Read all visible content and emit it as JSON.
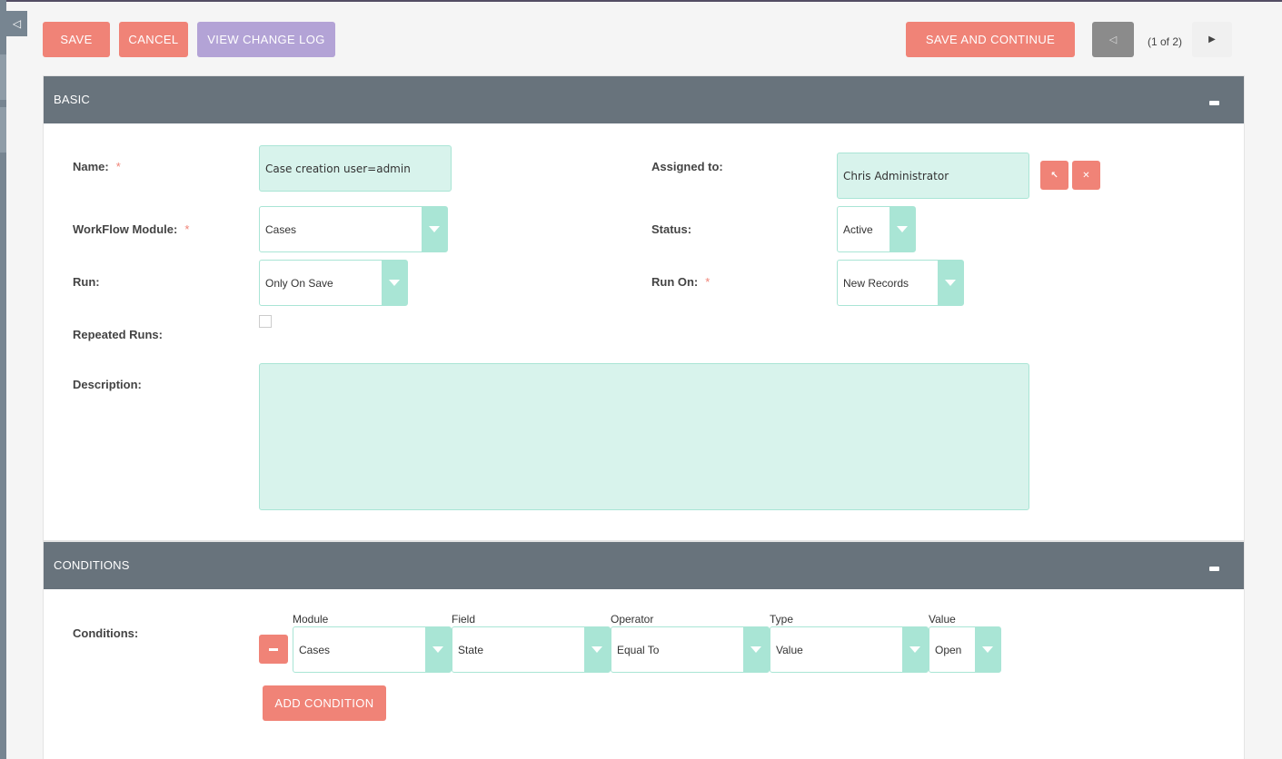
{
  "toolbar": {
    "save": "SAVE",
    "cancel": "CANCEL",
    "view_change_log": "VIEW CHANGE LOG",
    "save_and_continue": "SAVE AND CONTINUE",
    "pager_text": "(1 of 2)"
  },
  "icons": {
    "collapse": "◁",
    "prev": "◁",
    "next": "▶",
    "select": "↖",
    "clear": "✕"
  },
  "basic": {
    "title": "BASIC",
    "name_label": "Name:",
    "name_value": "Case creation user=admin",
    "required_mark": "*",
    "assigned_label": "Assigned to:",
    "assigned_value": "Chris Administrator",
    "module_label": "WorkFlow Module:",
    "module_value": "Cases",
    "status_label": "Status:",
    "status_value": "Active",
    "run_label": "Run:",
    "run_value": "Only On Save",
    "run_on_label": "Run On:",
    "run_on_value": "New Records",
    "repeated_label": "Repeated Runs:",
    "description_label": "Description:",
    "description_value": ""
  },
  "conditions": {
    "title": "CONDITIONS",
    "label": "Conditions:",
    "columns": [
      "Module",
      "Field",
      "Operator",
      "Type",
      "Value"
    ],
    "row": {
      "module": "Cases",
      "field": "State",
      "operator": "Equal To",
      "type": "Value",
      "value": "Open"
    },
    "add_button": "ADD CONDITION"
  },
  "colors": {
    "accent": "#f08377",
    "secondary": "#b3a3d6",
    "header": "#68737c",
    "field_bg": "#d8f3ec",
    "field_border": "#a9e5d5"
  }
}
